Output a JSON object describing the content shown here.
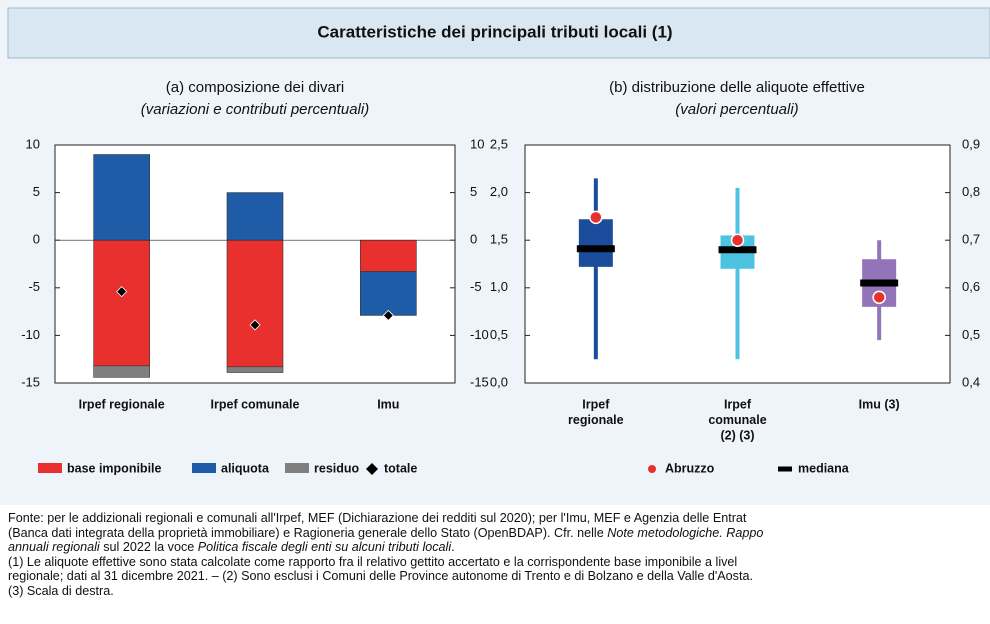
{
  "title": "Caratteristiche dei principali tributi locali (1)",
  "chart_data": [
    {
      "type": "stacked_bar",
      "title": "(a) composizione dei divari",
      "subtitle": "(variazioni e contributi percentuali)",
      "categories": [
        "Irpef regionale",
        "Irpef comunale",
        "Imu"
      ],
      "series": [
        {
          "name": "base imponibile",
          "color": "#e8312f",
          "values": [
            -13.2,
            -13.3,
            -3.3
          ]
        },
        {
          "name": "aliquota",
          "color": "#1f5ca8",
          "values": [
            9.0,
            5.0,
            -4.6
          ]
        },
        {
          "name": "residuo",
          "color": "#7f7f7f",
          "values": [
            -1.2,
            -0.6,
            0
          ]
        }
      ],
      "markers": {
        "name": "totale",
        "color": "#000000",
        "values": [
          -5.4,
          -8.9,
          -7.9
        ]
      },
      "ylim": [
        -15,
        10
      ],
      "yticks": [
        -15,
        -10,
        -5,
        0,
        5,
        10
      ],
      "y2lim": [
        -15,
        10
      ],
      "y2ticks": [
        -15,
        -10,
        -5,
        0,
        5,
        10
      ]
    },
    {
      "type": "box",
      "title": "(b) distribuzione delle aliquote effettive",
      "subtitle": "(valori percentuali)",
      "categories": [
        [
          "Irpef",
          "regionale"
        ],
        [
          "Irpef",
          "comunale",
          "(2) (3)"
        ],
        [
          "Imu (3)"
        ]
      ],
      "axes": [
        "y",
        "y2",
        "y2"
      ],
      "box_colors": [
        "#1c4d9c",
        "#4cc3e0",
        "#9374b9"
      ],
      "low": [
        0.25,
        0.45,
        0.49
      ],
      "q1": [
        1.22,
        0.64,
        0.56
      ],
      "q3": [
        1.72,
        0.71,
        0.66
      ],
      "high": [
        2.15,
        0.81,
        0.7
      ],
      "series": [
        {
          "name": "Abruzzo",
          "color": "#e8312f",
          "values": [
            1.74,
            0.7,
            0.58
          ]
        },
        {
          "name": "mediana",
          "color": "#000000",
          "values": [
            1.41,
            0.68,
            0.61
          ]
        }
      ],
      "ylim": [
        0,
        2.5
      ],
      "yticks": [
        {
          "value": 0,
          "label": "0,0"
        },
        {
          "value": 0.5,
          "label": "0,5"
        },
        {
          "value": 1,
          "label": "1,0"
        },
        {
          "value": 1.5,
          "label": "1,5"
        },
        {
          "value": 2,
          "label": "2,0"
        },
        {
          "value": 2.5,
          "label": "2,5"
        }
      ],
      "y2lim": [
        0.4,
        0.9
      ],
      "y2ticks": [
        {
          "value": 0.4,
          "label": "0,4"
        },
        {
          "value": 0.5,
          "label": "0,5"
        },
        {
          "value": 0.6,
          "label": "0,6"
        },
        {
          "value": 0.7,
          "label": "0,7"
        },
        {
          "value": 0.8,
          "label": "0,8"
        },
        {
          "value": 0.9,
          "label": "0,9"
        }
      ]
    }
  ],
  "footnotes": [
    [
      {
        "text": "Fonte: per le addizionali regionali e comunali all'Irpef, MEF (Dichiarazione dei redditi sul 2020); per l'Imu, MEF e Agenzia delle Entrat",
        "italic": false
      }
    ],
    [
      {
        "text": "(Banca dati integrata della proprietà immobiliare) e Ragioneria generale dello Stato (OpenBDAP). Cfr. nelle ",
        "italic": false
      },
      {
        "text": "Note metodologiche. Rappo",
        "italic": true
      }
    ],
    [
      {
        "text": "annuali regionali",
        "italic": true
      },
      {
        "text": " sul 2022 la voce ",
        "italic": false
      },
      {
        "text": "Politica fiscale degli enti su alcuni tributi locali",
        "italic": true
      },
      {
        "text": ".",
        "italic": false
      }
    ],
    [
      {
        "text": "(1) Le aliquote effettive sono stata calcolate come rapporto fra il relativo gettito accertato e la corrispondente base imponibile a livel",
        "italic": false
      }
    ],
    [
      {
        "text": "regionale; dati al 31 dicembre 2021. – (2) Sono esclusi i Comuni delle Province autonome di Trento e di Bolzano e della Valle d'Aosta.",
        "italic": false
      }
    ],
    [
      {
        "text": "(3) Scala di destra.",
        "italic": false
      }
    ]
  ]
}
